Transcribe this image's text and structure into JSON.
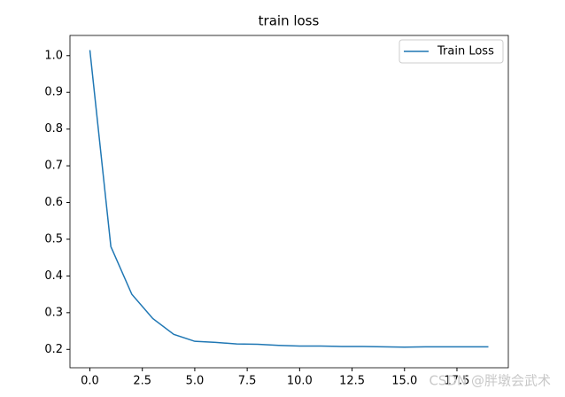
{
  "chart_data": {
    "type": "line",
    "title": "train loss",
    "x": [
      0,
      1,
      2,
      3,
      4,
      5,
      6,
      7,
      8,
      9,
      10,
      11,
      12,
      13,
      14,
      15,
      16,
      17,
      18,
      19
    ],
    "series": [
      {
        "name": "Train Loss",
        "color": "#1f77b4",
        "values": [
          1.015,
          0.48,
          0.35,
          0.284,
          0.241,
          0.222,
          0.219,
          0.215,
          0.214,
          0.211,
          0.209,
          0.209,
          0.208,
          0.208,
          0.207,
          0.206,
          0.207,
          0.207,
          0.207,
          0.207
        ]
      }
    ],
    "xlim": [
      -0.95,
      19.95
    ],
    "xticks": [
      {
        "value": 0,
        "label": "0.0"
      },
      2.5,
      {
        "value": 5,
        "label": "5.0"
      },
      7.5,
      {
        "value": 10,
        "label": "10.0"
      },
      12.5,
      {
        "value": 15,
        "label": "15.0"
      },
      17.5
    ],
    "ylim": [
      0.15,
      1.055
    ],
    "yticks": [
      0.2,
      0.3,
      0.4,
      0.5,
      0.6,
      0.7,
      0.8,
      0.9,
      {
        "value": 1,
        "label": "1.0"
      }
    ],
    "grid": false,
    "legend": "upper right",
    "watermark": "CSDN @胖墩会武术"
  }
}
